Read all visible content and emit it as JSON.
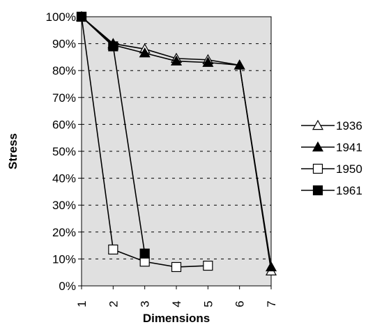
{
  "chart_data": {
    "type": "line",
    "title": "",
    "xlabel": "Dimensions",
    "ylabel": "Stress",
    "x": [
      1,
      2,
      3,
      4,
      5,
      6,
      7
    ],
    "x_tick_labels": [
      "1",
      "2",
      "3",
      "4",
      "5",
      "6",
      "7"
    ],
    "ylim": [
      0,
      100
    ],
    "y_ticks": [
      0,
      10,
      20,
      30,
      40,
      50,
      60,
      70,
      80,
      90,
      100
    ],
    "y_tick_labels": [
      "0%",
      "10%",
      "20%",
      "30%",
      "40%",
      "50%",
      "60%",
      "70%",
      "80%",
      "90%",
      "100%"
    ],
    "grid": "horizontal dashed",
    "plot_background": "#e0e0e0",
    "legend_position": "right",
    "series": [
      {
        "name": "1936",
        "marker": "triangle-open",
        "x": [
          1,
          2,
          3,
          4,
          5,
          6,
          7
        ],
        "values": [
          100,
          90,
          88,
          84.5,
          84,
          82,
          5.5
        ]
      },
      {
        "name": "1941",
        "marker": "triangle-filled",
        "x": [
          1,
          2,
          3,
          4,
          5,
          6,
          7
        ],
        "values": [
          100,
          89.5,
          86.5,
          83.5,
          83,
          82,
          7
        ]
      },
      {
        "name": "1950",
        "marker": "square-open",
        "x": [
          1,
          2,
          3,
          4,
          5
        ],
        "values": [
          100,
          13.5,
          9,
          7,
          7.5
        ]
      },
      {
        "name": "1961",
        "marker": "square-filled",
        "x": [
          1,
          2,
          3
        ],
        "values": [
          100,
          89,
          12
        ]
      }
    ]
  }
}
